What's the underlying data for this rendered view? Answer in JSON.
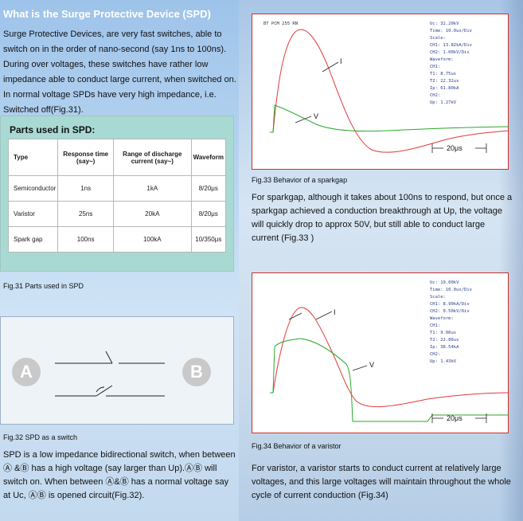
{
  "left": {
    "heading": "What is the Surge Protective Device (SPD)",
    "intro": "Surge Protective Devices, are very fast switches, able to switch on in the order of nano-second (say 1ns to 100ns). During over voltages, these switches have rather low impedance able to conduct large current, when switched on. In normal voltage SPDs have very high impedance, i.e. Switched off(Fig.31).",
    "parts_title": "Parts used in SPD:",
    "table": {
      "headers": [
        "Type",
        "Response time (say~)",
        "Range of discharge current (say~)",
        "Waveform"
      ],
      "rows": [
        [
          "Semiconductor",
          "1ns",
          "1kA",
          "8/20μs"
        ],
        [
          "Varistor",
          "25ns",
          "20kA",
          "8/20μs"
        ],
        [
          "Spark gap",
          "100ns",
          "100kA",
          "10/350μs"
        ]
      ]
    },
    "fig31_caption": "Fig.31  Parts used in SPD",
    "switch_labels": {
      "a": "A",
      "b": "B"
    },
    "fig32_caption": "Fig.32  SPD as a switch",
    "fig32_text": "SPD is a low impedance bidirectional switch, when between Ⓐ &Ⓑ has a high voltage (say larger than Up).ⒶⒷ will switch on. When between Ⓐ&Ⓑ has a normal voltage say at Uc, ⒶⒷ is opened circuit(Fig.32)."
  },
  "scope1": {
    "header": "BT PCM 255 RN",
    "readout": [
      "Uc:    32.20kV",
      "Time:  10.0us/Div",
      "Scale:",
      "CH1:   13.82kA/Div",
      "CH2:   1.00kV/Div",
      "Waveform:",
      "CH1:",
      "T1:    8.75us",
      "T2:    22.32us",
      "Ip:    61.80kA",
      "CH2:",
      "Up:    1.27kV"
    ],
    "label_i": "I",
    "label_v": "V",
    "time_marker": "20μs",
    "caption": "Fig.33  Behavior of a sparkgap",
    "text": "For sparkgap, although it takes about 100ns to respond, but once a sparkgap achieved a conduction breakthrough at Up, the voltage will quickly drop to approx 50V, but still able to conduct large current (Fig.33 )"
  },
  "scope2": {
    "readout": [
      "Uc:    19.00kV",
      "Time:  10.0us/Div",
      "Scale:",
      "CH1:   8.90kA/Div",
      "CH2:   0.50kV/Div",
      "Waveform:",
      "CH1:",
      "T1:    9.00us",
      "T2:    22.86us",
      "Ip:    38.54kA",
      "CH2:",
      "Up:    1.43kV"
    ],
    "label_i": "I",
    "label_v": "V",
    "time_marker": "20μs",
    "caption": "Fig.34  Behavior of a varistor",
    "text": "For varistor, a varistor starts to conduct current at relatively large voltages, and this large voltages will maintain throughout the whole cycle of current conduction (Fig.34)"
  },
  "colors": {
    "current_trace": "#e03a3a",
    "voltage_trace": "#2aa82a",
    "heading": "#ffffff",
    "table_box": "#a9d9d3"
  }
}
